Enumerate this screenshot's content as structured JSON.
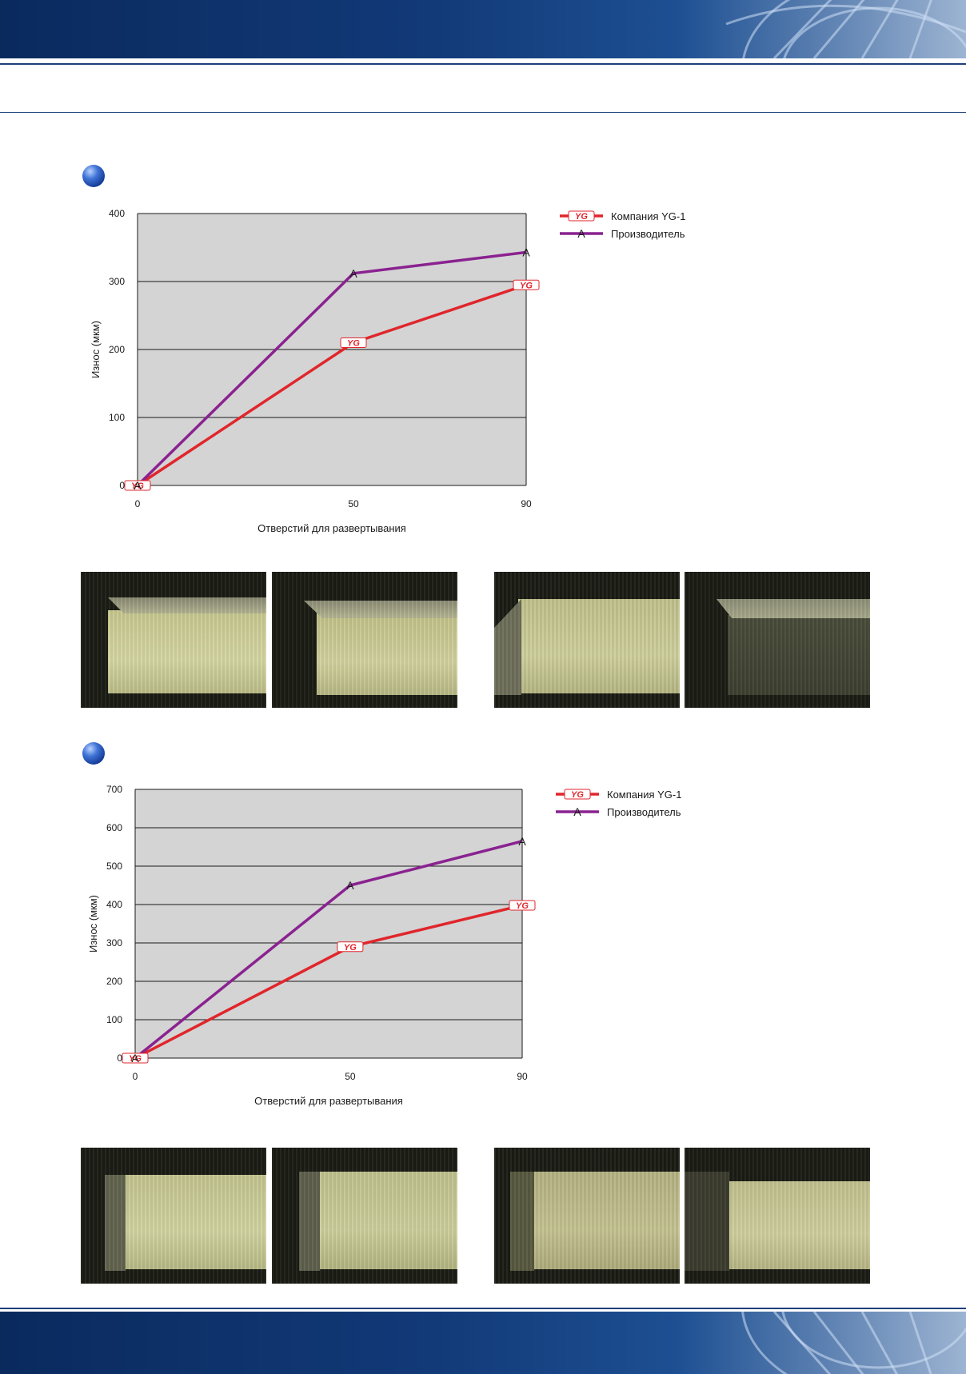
{
  "charts": [
    {
      "type": "line",
      "title": "",
      "xlabel": "Отверстий для развертывания",
      "ylabel": "Износ (мкм)",
      "x": [
        0,
        50,
        90
      ],
      "ylim": [
        0,
        400
      ],
      "yticks": [
        0,
        100,
        200,
        300,
        400
      ],
      "grid": true,
      "legend_position": "top-right",
      "series": [
        {
          "name": "Компания YG-1",
          "marker": "YG",
          "color": "#e0262c",
          "values": [
            0,
            210,
            295
          ]
        },
        {
          "name": "Производитель",
          "marker": "A",
          "color": "#8a2290",
          "values": [
            0,
            312,
            343
          ]
        }
      ]
    },
    {
      "type": "line",
      "title": "",
      "xlabel": "Отверстий для развертывания",
      "ylabel": "Износ (мкм)",
      "x": [
        0,
        50,
        90
      ],
      "ylim": [
        0,
        700
      ],
      "yticks": [
        0,
        100,
        200,
        300,
        400,
        500,
        600,
        700
      ],
      "grid": true,
      "legend_position": "top-right",
      "series": [
        {
          "name": "Компания YG-1",
          "marker": "YG",
          "color": "#e0262c",
          "values": [
            0,
            290,
            398
          ]
        },
        {
          "name": "Производитель",
          "marker": "A",
          "color": "#8a2290",
          "values": [
            0,
            450,
            565
          ]
        }
      ]
    }
  ],
  "colors": {
    "banner": "#123a78",
    "rule": "#1e3f7a",
    "plot_bg": "#d4d4d4",
    "gridline": "#1a1a1a"
  },
  "icons": [
    "blue-sphere-bullet-icon",
    "yg1-logo-marker-icon"
  ]
}
